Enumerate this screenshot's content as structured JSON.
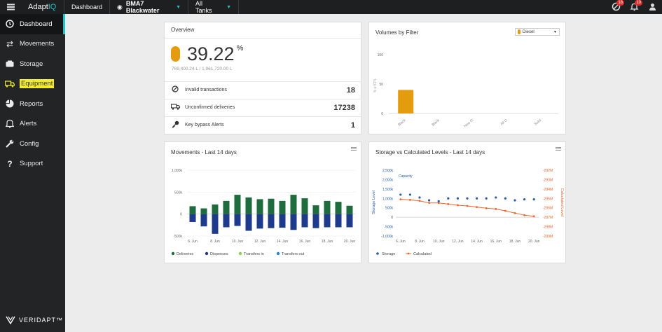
{
  "topbar": {
    "app_name_a": "Adapt",
    "app_name_b": "IQ",
    "tab": "Dashboard",
    "site": "BMA7 Blackwater",
    "tanks": "All Tanks",
    "notif_count_a": "18",
    "notif_count_b": "10"
  },
  "sidebar": {
    "items": [
      {
        "label": "Dashboard",
        "icon": "dashboard-icon"
      },
      {
        "label": "Movements",
        "icon": "arrows-icon"
      },
      {
        "label": "Storage",
        "icon": "storage-icon"
      },
      {
        "label": "Equipment",
        "icon": "truck-icon"
      },
      {
        "label": "Reports",
        "icon": "pie-icon"
      },
      {
        "label": "Alerts",
        "icon": "bell-icon"
      },
      {
        "label": "Config",
        "icon": "wrench-icon"
      },
      {
        "label": "Support",
        "icon": "question-icon"
      }
    ],
    "brand": "VERIDAPT™"
  },
  "overview": {
    "title": "Overview",
    "percent": "39.22",
    "percent_sym": "%",
    "sub": "769,400.24 L / 1,961,720.00 L",
    "rows": [
      {
        "label": "Invalid transactions",
        "value": "18"
      },
      {
        "label": "Unconfirmed deliveries",
        "value": "17238"
      },
      {
        "label": "Key bypass Alerts",
        "value": "1"
      }
    ]
  },
  "volumes": {
    "title": "Volumes by Filter",
    "filter": "Diesel"
  },
  "movements": {
    "title": "Movements - Last 14 days"
  },
  "storage": {
    "title": "Storage vs Calculated Levels - Last 14 days"
  },
  "chart_data": [
    {
      "type": "bar",
      "ylabel": "% of FPL",
      "categories": [
        "Black",
        "Blank",
        "New FI",
        "All O",
        "Solid"
      ],
      "values": [
        40,
        0,
        0,
        0,
        0
      ],
      "yticks": [
        "100",
        "50",
        "0"
      ],
      "ylim": [
        0,
        100
      ],
      "color": "#e49c0e"
    },
    {
      "type": "bar",
      "categories": [
        "6 Jun",
        "7 Jun",
        "8 Jun",
        "9 Jun",
        "10 Jun",
        "11 Jun",
        "12 Jun",
        "13 Jun",
        "14 Jun",
        "15 Jun",
        "16 Jun",
        "17 Jun",
        "18 Jun",
        "19 Jun",
        "20 Jun"
      ],
      "xticks": [
        "6. Jun",
        "8. Jun",
        "10. Jun",
        "12. Jun",
        "14. Jun",
        "16. Jun",
        "18. Jun",
        "20. Jun"
      ],
      "yticks": [
        "1,000k",
        "500k",
        "0",
        "-500k"
      ],
      "ylim": [
        -500,
        1000
      ],
      "series": [
        {
          "name": "Deliveries",
          "color": "#1e6b3d",
          "values": [
            180,
            130,
            220,
            300,
            440,
            380,
            340,
            350,
            300,
            440,
            360,
            200,
            300,
            280,
            190
          ]
        },
        {
          "name": "Dispenses",
          "color": "#1e3a8a",
          "values": [
            -180,
            -280,
            -450,
            -300,
            -270,
            -380,
            -330,
            -320,
            -310,
            -360,
            -300,
            -320,
            -300,
            -300,
            -300
          ]
        },
        {
          "name": "Transfers in",
          "color": "#8bd14a",
          "values": [
            0,
            0,
            0,
            0,
            0,
            0,
            0,
            0,
            0,
            0,
            0,
            0,
            0,
            0,
            0
          ]
        },
        {
          "name": "Transfers out",
          "color": "#1e88e5",
          "values": [
            0,
            0,
            0,
            0,
            0,
            0,
            0,
            0,
            0,
            0,
            0,
            0,
            0,
            0,
            0
          ]
        }
      ]
    },
    {
      "type": "line",
      "ylabel": "Storage Level",
      "y2label": "Calculated Level",
      "capacity_label": "Capacity",
      "x": [
        "6 Jun",
        "7 Jun",
        "8 Jun",
        "9 Jun",
        "10 Jun",
        "11 Jun",
        "12 Jun",
        "13 Jun",
        "14 Jun",
        "15 Jun",
        "16 Jun",
        "17 Jun",
        "18 Jun",
        "19 Jun",
        "20 Jun"
      ],
      "xticks": [
        "6. Jun",
        "8. Jun",
        "10. Jun",
        "12. Jun",
        "14. Jun",
        "16. Jun",
        "18. Jun",
        "20. Jun"
      ],
      "yticks": [
        "2,500k",
        "2,000k",
        "1,500k",
        "1,000k",
        "500k",
        "0",
        "-500k",
        "-1,000k"
      ],
      "y2ticks": [
        "-292M",
        "-293M",
        "-294M",
        "-295M",
        "-296M",
        "-297M",
        "-298M",
        "-299M"
      ],
      "series": [
        {
          "name": "Storage",
          "color": "#2a5ba8",
          "values": [
            1200,
            1200,
            1050,
            900,
            850,
            1000,
            1000,
            1000,
            1000,
            1000,
            1050,
            1000,
            900,
            950,
            950
          ]
        },
        {
          "name": "Calculated",
          "color": "#f0642c",
          "values": [
            950,
            920,
            870,
            760,
            760,
            700,
            640,
            600,
            540,
            480,
            440,
            340,
            220,
            110,
            50
          ]
        }
      ]
    }
  ]
}
